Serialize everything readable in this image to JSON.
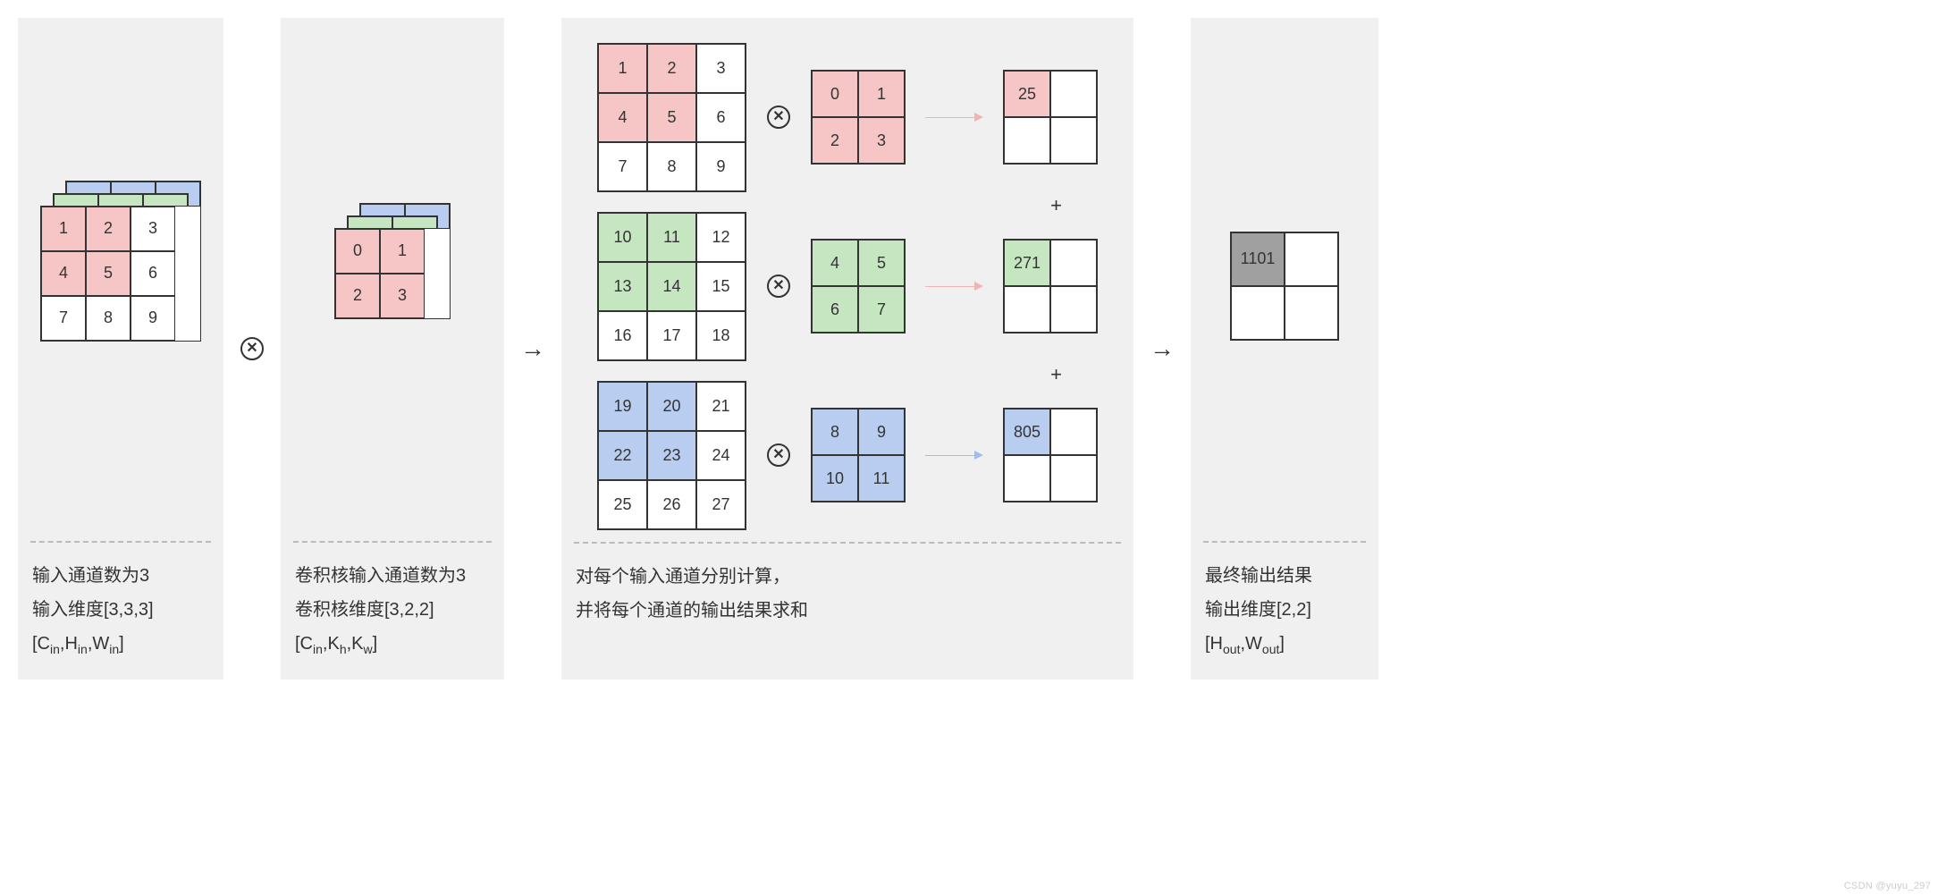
{
  "colors": {
    "pink": "#f6c6c6",
    "green": "#c6e6c2",
    "blue": "#b8cdf0",
    "gray": "#a0a0a0",
    "border": "#333333",
    "panel_bg": "#f0f0f0"
  },
  "cell_sizes": {
    "p1_input": 50,
    "p2_kernel": 50,
    "p3_input": 55,
    "p3_kernel": 52,
    "p3_out": 52,
    "p4_out": 60
  },
  "panel1": {
    "caption_l1": "输入通道数为3",
    "caption_l2": "输入维度[3,3,3]",
    "caption_l3_a": "[C",
    "caption_l3_b": "in",
    "caption_l3_c": ",H",
    "caption_l3_d": "in",
    "caption_l3_e": ",W",
    "caption_l3_f": "in",
    "caption_l3_g": "]",
    "grid": [
      "1",
      "2",
      "3",
      "4",
      "5",
      "6",
      "7",
      "8",
      "9"
    ],
    "hl": [
      0,
      1,
      3,
      4
    ]
  },
  "panel2": {
    "caption_l1": "卷积核输入通道数为3",
    "caption_l2": "卷积核维度[3,2,2]",
    "caption_l3_a": "[C",
    "caption_l3_b": "in",
    "caption_l3_c": ",K",
    "caption_l3_d": "h",
    "caption_l3_e": ",K",
    "caption_l3_f": "w",
    "caption_l3_g": "]",
    "grid": [
      "0",
      "1",
      "2",
      "3"
    ]
  },
  "panel3": {
    "caption_l1": "对每个输入通道分别计算，",
    "caption_l2": "并将每个通道的输出结果求和",
    "rows": [
      {
        "color": "pink",
        "input": [
          "1",
          "2",
          "3",
          "4",
          "5",
          "6",
          "7",
          "8",
          "9"
        ],
        "kernel": [
          "0",
          "1",
          "2",
          "3"
        ],
        "out": "25",
        "arrow_color": "#f0b4b4"
      },
      {
        "color": "green",
        "input": [
          "10",
          "11",
          "12",
          "13",
          "14",
          "15",
          "16",
          "17",
          "18"
        ],
        "kernel": [
          "4",
          "5",
          "6",
          "7"
        ],
        "out": "271",
        "arrow_color": "#f0b4b4"
      },
      {
        "color": "blue",
        "input": [
          "19",
          "20",
          "21",
          "22",
          "23",
          "24",
          "25",
          "26",
          "27"
        ],
        "kernel": [
          "8",
          "9",
          "10",
          "11"
        ],
        "out": "805",
        "arrow_color": "#9fbde8"
      }
    ],
    "plus": "+"
  },
  "panel4": {
    "caption_l1": "最终输出结果",
    "caption_l2": "输出维度[2,2]",
    "caption_l3_a": "[H",
    "caption_l3_b": "out",
    "caption_l3_c": ",W",
    "caption_l3_d": "out",
    "caption_l3_e": "]",
    "out": "1101"
  },
  "watermark": "CSDN @yuyu_297"
}
